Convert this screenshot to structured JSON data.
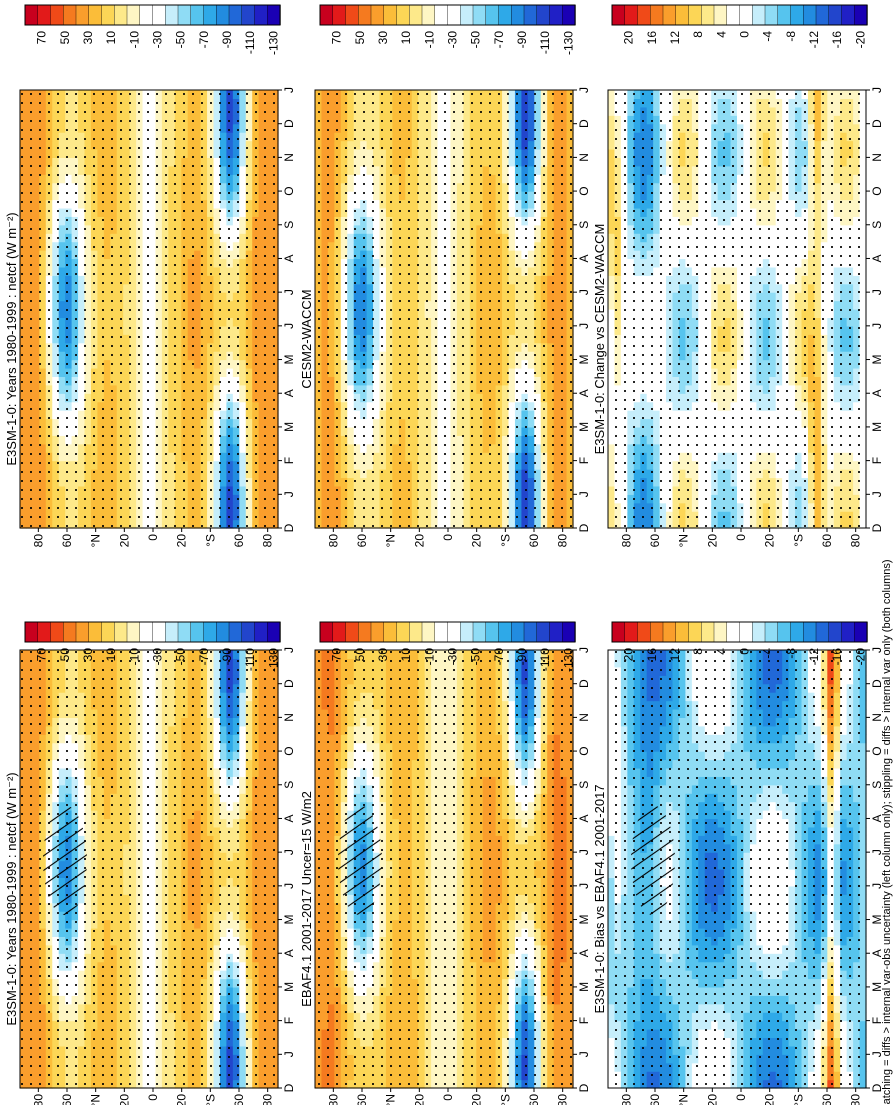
{
  "figure": {
    "orientation": "rotated 90 degrees counter-clockwise",
    "footer": "hatching = diffs > internal var-obs uncertainty (left column only); stippling = diffs > internal var only (both columns)"
  },
  "panels": [
    {
      "id": "bl",
      "title": "E3SM-1-0: Years 1980-1999 : netcf (W m⁻²)",
      "hatch": true,
      "variant": "field",
      "colorbar": {
        "ticks": [
          "70",
          "50",
          "30",
          "10",
          "-10",
          "-30",
          "-50",
          "-70",
          "-90",
          "-110",
          "-130"
        ]
      }
    },
    {
      "id": "tl",
      "title": "E3SM-1-0: Years 1980-1999 : netcf (W m⁻²)",
      "hatch": false,
      "variant": "field",
      "colorbar": {
        "ticks": [
          "70",
          "50",
          "30",
          "10",
          "-10",
          "-30",
          "-50",
          "-70",
          "-90",
          "-110",
          "-130"
        ]
      }
    },
    {
      "id": "bm",
      "title": "EBAF4.1 2001-2017 Uncer=15 W/m2",
      "hatch": true,
      "variant": "field",
      "colorbar": {
        "ticks": [
          "70",
          "50",
          "30",
          "10",
          "-10",
          "-30",
          "-50",
          "-70",
          "-90",
          "-110",
          "-130"
        ]
      }
    },
    {
      "id": "tm",
      "title": "CESM2-WACCM",
      "hatch": false,
      "variant": "field",
      "colorbar": {
        "ticks": [
          "70",
          "50",
          "30",
          "10",
          "-10",
          "-30",
          "-50",
          "-70",
          "-90",
          "-110",
          "-130"
        ]
      }
    },
    {
      "id": "br",
      "title": "E3SM-1-0: Bias vs EBAF4.1 2001-2017",
      "hatch": true,
      "variant": "bias",
      "colorbar": {
        "ticks": [
          "20",
          "16",
          "12",
          "8",
          "4",
          "0",
          "-4",
          "-8",
          "-12",
          "-16",
          "-20"
        ]
      }
    },
    {
      "id": "tr",
      "title": "E3SM-1-0: Change vs CESM2-WACCM",
      "hatch": false,
      "variant": "change",
      "colorbar": {
        "ticks": [
          "20",
          "16",
          "12",
          "8",
          "4",
          "0",
          "-4",
          "-8",
          "-12",
          "-16",
          "-20"
        ]
      }
    }
  ],
  "chart_data": {
    "type": "heatmap",
    "x_axis": {
      "label": "month",
      "ticks": [
        "D",
        "J",
        "F",
        "M",
        "A",
        "M",
        "J",
        "J",
        "A",
        "S",
        "O",
        "N",
        "D",
        "J"
      ]
    },
    "y_axis": {
      "label": "latitude",
      "ticks": [
        "80",
        "60",
        "°N",
        "20",
        "0",
        "20",
        "°S",
        "60",
        "80"
      ],
      "range": [
        -90,
        90
      ]
    },
    "colorscale": {
      "field": {
        "range": [
          -130,
          70
        ],
        "colors": [
          "#c8001e",
          "#e21a1a",
          "#f04a18",
          "#f57a1f",
          "#fa9e2c",
          "#fbbd39",
          "#fcd656",
          "#fde98a",
          "#fef6c4",
          "#ffffff",
          "#ffffff",
          "#c6eefb",
          "#8fdcf5",
          "#56c4ee",
          "#2ea9e8",
          "#228ce0",
          "#2168d8",
          "#2245cc",
          "#2020c6",
          "#1a00b4"
        ]
      },
      "bias": {
        "range": [
          -20,
          20
        ],
        "colors": [
          "#c8001e",
          "#e21a1a",
          "#f04a18",
          "#f57a1f",
          "#fa9e2c",
          "#fbbd39",
          "#fcd656",
          "#fde98a",
          "#fef6c4",
          "#ffffff",
          "#ffffff",
          "#c6eefb",
          "#8fdcf5",
          "#56c4ee",
          "#2ea9e8",
          "#228ce0",
          "#2168d8",
          "#2245cc",
          "#2020c6",
          "#1a00b4"
        ]
      }
    },
    "description_of_fields": "zonal-mean monthly netcf; cells encoded procedurally from the shown patterns"
  }
}
